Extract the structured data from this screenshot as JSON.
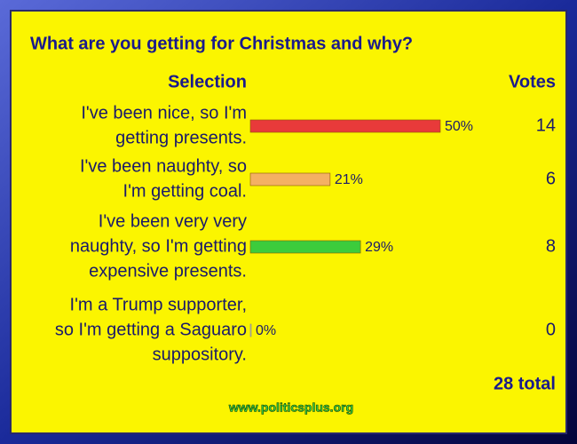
{
  "chart_data": {
    "type": "bar",
    "title": "What are you getting for Christmas and why?",
    "category_header": "Selection",
    "votes_header": "Votes",
    "categories": [
      [
        "I've been nice, so I'm",
        "getting presents."
      ],
      [
        "I've been naughty, so",
        "I'm getting coal."
      ],
      [
        "I've been very very",
        "naughty, so I'm getting",
        "expensive presents."
      ],
      [
        "I'm a Trump supporter,",
        "so I'm getting a Saguaro",
        "suppository."
      ]
    ],
    "values": [
      50,
      21,
      29,
      0
    ],
    "value_labels": [
      "50%",
      "21%",
      "29%",
      "0%"
    ],
    "colors": [
      "#e83a3a",
      "#f4b064",
      "#3ccc3c",
      "#c8c8c8"
    ],
    "votes": [
      14,
      6,
      8,
      0
    ],
    "total": "28 total",
    "footer": "www.politicsplus.org"
  }
}
